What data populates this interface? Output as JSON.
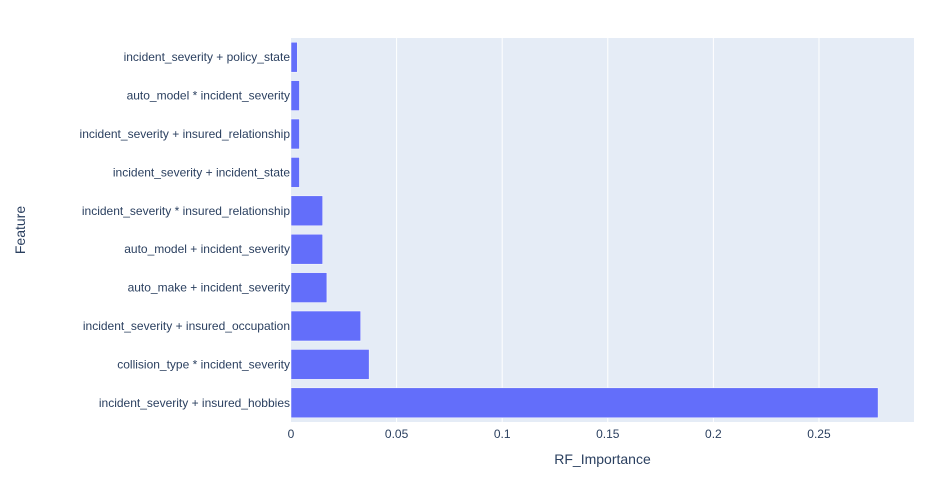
{
  "chart_data": {
    "type": "bar",
    "orientation": "horizontal",
    "categories": [
      "incident_severity + insured_hobbies",
      "collision_type * incident_severity",
      "incident_severity + insured_occupation",
      "auto_make + incident_severity",
      "auto_model + incident_severity",
      "incident_severity * insured_relationship",
      "incident_severity + incident_state",
      "incident_severity + insured_relationship",
      "auto_model * incident_severity",
      "incident_severity + policy_state"
    ],
    "values": [
      0.278,
      0.037,
      0.033,
      0.017,
      0.015,
      0.015,
      0.004,
      0.004,
      0.004,
      0.003
    ],
    "xlabel": "RF_Importance",
    "ylabel": "Feature",
    "xlim": [
      0,
      0.295
    ],
    "xticks": [
      0,
      0.05,
      0.1,
      0.15,
      0.2,
      0.25
    ],
    "xtick_labels": [
      "0",
      "0.05",
      "0.1",
      "0.15",
      "0.2",
      "0.25"
    ],
    "grid": true,
    "colors": {
      "bar": "#636efa",
      "plot_bg": "#e5ecf6",
      "grid": "#ffffff",
      "text": "#2a3f5f"
    }
  }
}
